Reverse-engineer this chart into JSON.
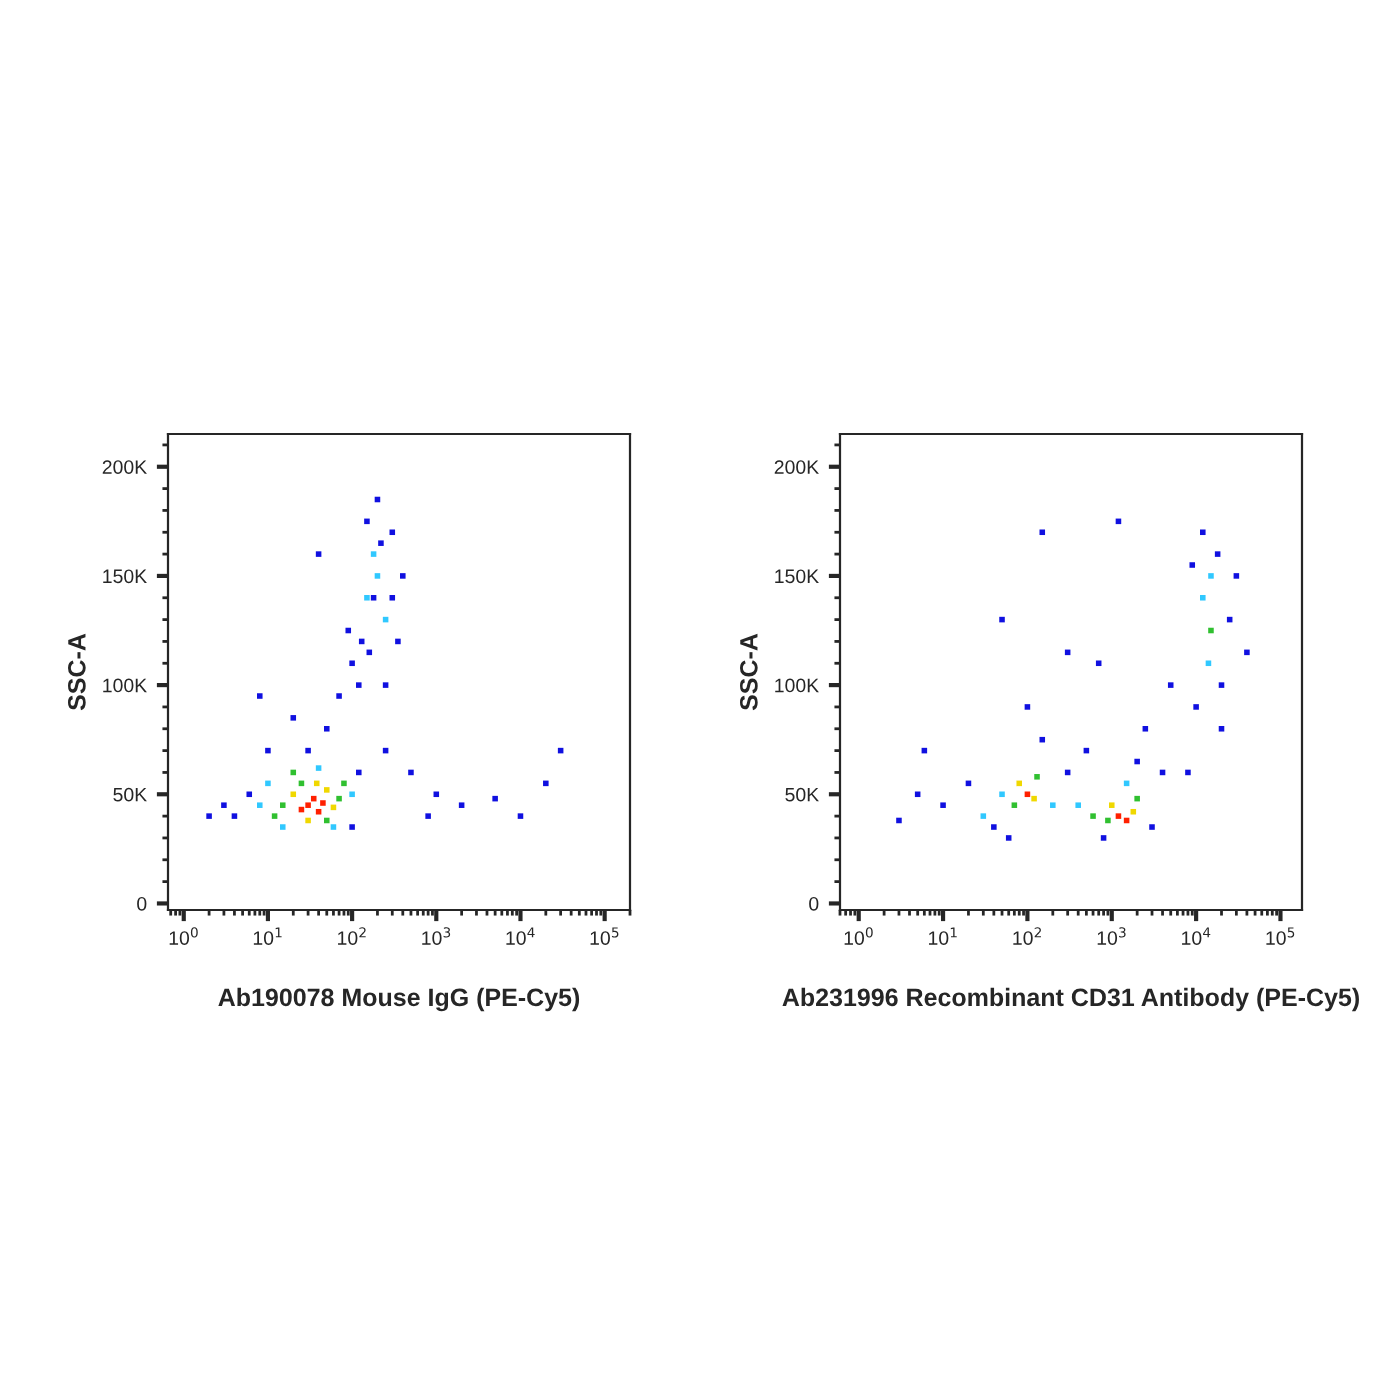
{
  "chart_data": [
    {
      "type": "scatter",
      "xlabel": "Ab190078 Mouse IgG (PE-Cy5)",
      "ylabel": "SSC-A",
      "log": "x",
      "marker": "square",
      "grid": false,
      "legend": false,
      "xlim": [
        0.65,
        200000
      ],
      "xticks": [
        {
          "value": 1,
          "label": "10$^{0}$"
        },
        {
          "value": 10,
          "label": "10$^{1}$"
        },
        {
          "value": 100,
          "label": "10$^{2}$"
        },
        {
          "value": 1000,
          "label": "10$^{3}$"
        },
        {
          "value": 10000,
          "label": "10$^{4}$"
        },
        {
          "value": 100000,
          "label": "10$^{5}$"
        }
      ],
      "ylim": [
        -3000,
        215000
      ],
      "yticks": [
        0,
        {
          "value": 50000,
          "label": "50K"
        },
        {
          "value": 100000,
          "label": "100K"
        },
        {
          "value": 150000,
          "label": "150K"
        },
        {
          "value": 200000,
          "label": "200K"
        }
      ],
      "series": [
        {
          "x": [
            4,
            6,
            3,
            100,
            120,
            30,
            50,
            10,
            20,
            70,
            100,
            90,
            130,
            150,
            200,
            300,
            400,
            350,
            250,
            120,
            180,
            300,
            220,
            160,
            1000,
            2000,
            5000,
            20000,
            30000,
            10000,
            500,
            800,
            8,
            40,
            2,
            250
          ],
          "values": [
            40000,
            50000,
            45000,
            35000,
            60000,
            70000,
            80000,
            70000,
            85000,
            95000,
            110000,
            125000,
            120000,
            175000,
            185000,
            170000,
            150000,
            120000,
            100000,
            100000,
            140000,
            140000,
            165000,
            115000,
            50000,
            45000,
            48000,
            55000,
            70000,
            40000,
            60000,
            40000,
            95000,
            160000,
            40000,
            70000
          ],
          "color": "#1010e0"
        },
        {
          "x": [
            8,
            100,
            15,
            60,
            40,
            10,
            150,
            200,
            250,
            180
          ],
          "values": [
            45000,
            50000,
            35000,
            35000,
            62000,
            55000,
            140000,
            150000,
            130000,
            160000
          ],
          "color": "#30c8ff"
        },
        {
          "x": [
            15,
            70,
            25,
            50,
            12,
            80,
            20
          ],
          "values": [
            45000,
            48000,
            55000,
            38000,
            40000,
            55000,
            60000
          ],
          "color": "#30c030"
        },
        {
          "x": [
            20,
            50,
            30,
            60,
            38
          ],
          "values": [
            50000,
            52000,
            38000,
            44000,
            55000
          ],
          "color": "#f0d800"
        },
        {
          "x": [
            30,
            40,
            35,
            45,
            25
          ],
          "values": [
            45000,
            42000,
            48000,
            46000,
            43000
          ],
          "color": "#ff2000"
        }
      ]
    },
    {
      "type": "scatter",
      "xlabel": "Ab231996 Recombinant CD31 Antibody (PE-Cy5)",
      "ylabel": "SSC-A",
      "log": "x",
      "marker": "square",
      "grid": false,
      "legend": false,
      "xlim": [
        0.6,
        180000
      ],
      "xticks": [
        {
          "value": 1,
          "label": "10$^{0}$"
        },
        {
          "value": 10,
          "label": "10$^{1}$"
        },
        {
          "value": 100,
          "label": "10$^{2}$"
        },
        {
          "value": 1000,
          "label": "10$^{3}$"
        },
        {
          "value": 10000,
          "label": "10$^{4}$"
        },
        {
          "value": 100000,
          "label": "10$^{5}$"
        }
      ],
      "ylim": [
        -3000,
        215000
      ],
      "yticks": [
        0,
        {
          "value": 50000,
          "label": "50K"
        },
        {
          "value": 100000,
          "label": "100K"
        },
        {
          "value": 150000,
          "label": "150K"
        },
        {
          "value": 200000,
          "label": "200K"
        }
      ],
      "series": [
        {
          "x": [
            10,
            20,
            5,
            3,
            40,
            300,
            150,
            100,
            3000,
            4000,
            500,
            800,
            2500,
            5000,
            10000,
            20000,
            25000,
            12000,
            18000,
            9000,
            30000,
            40000,
            20000,
            50,
            150,
            1200,
            8000,
            700,
            300,
            60,
            6,
            2000
          ],
          "values": [
            45000,
            55000,
            50000,
            38000,
            35000,
            60000,
            75000,
            90000,
            35000,
            60000,
            70000,
            30000,
            80000,
            100000,
            90000,
            100000,
            130000,
            170000,
            160000,
            155000,
            150000,
            115000,
            80000,
            130000,
            170000,
            175000,
            60000,
            110000,
            115000,
            30000,
            70000,
            65000
          ],
          "color": "#1010e0"
        },
        {
          "x": [
            50,
            200,
            1500,
            400,
            12000,
            14000,
            15000,
            30
          ],
          "values": [
            50000,
            45000,
            55000,
            45000,
            140000,
            110000,
            150000,
            40000
          ],
          "color": "#30c8ff"
        },
        {
          "x": [
            70,
            130,
            900,
            2000,
            600,
            15000
          ],
          "values": [
            45000,
            58000,
            38000,
            48000,
            40000,
            125000
          ],
          "color": "#30c030"
        },
        {
          "x": [
            1000,
            1800,
            80,
            120
          ],
          "values": [
            45000,
            42000,
            55000,
            48000
          ],
          "color": "#f0d800"
        },
        {
          "x": [
            1200,
            1500,
            100
          ],
          "values": [
            40000,
            38000,
            50000
          ],
          "color": "#ff2000"
        }
      ]
    }
  ]
}
